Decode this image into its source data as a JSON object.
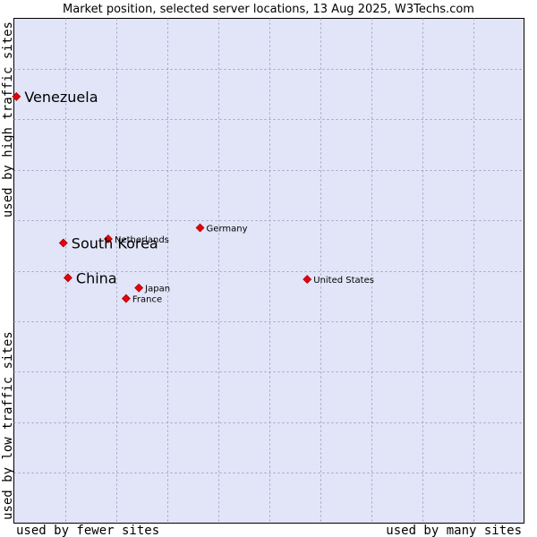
{
  "chart_data": {
    "type": "scatter",
    "title": "Market position, selected server locations, 13 Aug 2025, W3Techs.com",
    "xlabel_left": "used by fewer sites",
    "xlabel_right": "used by many sites",
    "ylabel_bottom": "used by low traffic sites",
    "ylabel_top": "used by high traffic sites",
    "xlim": [
      0,
      100
    ],
    "ylim": [
      0,
      100
    ],
    "grid": true,
    "colors": {
      "plot_bg": "#e2e4f8",
      "point": "#e8000a",
      "point_edge": "#900000",
      "grid": "#a0a0b8"
    },
    "points": [
      {
        "label": "Venezuela",
        "x": 0.5,
        "y": 84.5,
        "size": "large"
      },
      {
        "label": "Germany",
        "x": 36.5,
        "y": 58.5,
        "size": "small"
      },
      {
        "label": "Netherlands",
        "x": 18.5,
        "y": 56.3,
        "size": "small"
      },
      {
        "label": "South Korea",
        "x": 9.7,
        "y": 55.5,
        "size": "large"
      },
      {
        "label": "China",
        "x": 10.6,
        "y": 48.6,
        "size": "large"
      },
      {
        "label": "United States",
        "x": 57.5,
        "y": 48.3,
        "size": "small"
      },
      {
        "label": "Japan",
        "x": 24.5,
        "y": 46.6,
        "size": "small"
      },
      {
        "label": "France",
        "x": 22.0,
        "y": 44.5,
        "size": "small"
      }
    ]
  }
}
